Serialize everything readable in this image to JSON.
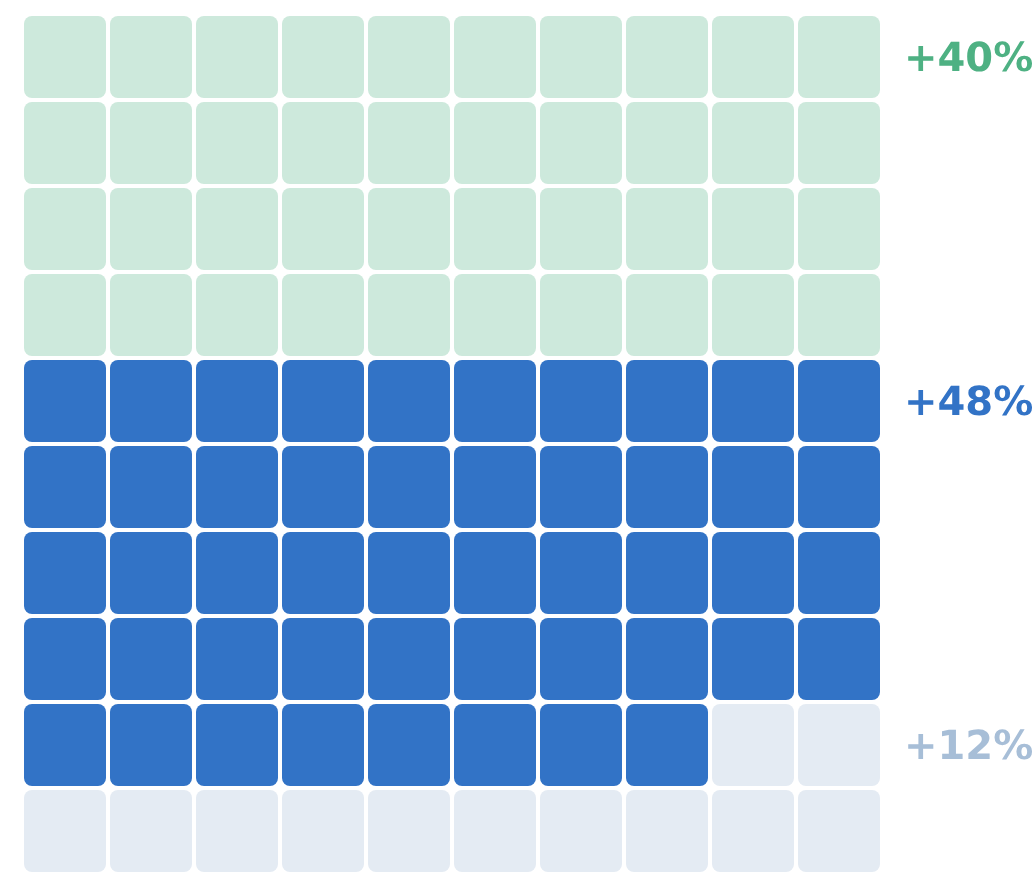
{
  "chart_data": {
    "type": "other",
    "categories": [
      null,
      null,
      null
    ],
    "values": [
      40,
      48,
      12
    ],
    "colors": [
      "#cde9dc",
      "#3273c6",
      "#e4ebf3"
    ],
    "value_labels": [
      "+40%",
      "+48%",
      "+12%"
    ]
  }
}
